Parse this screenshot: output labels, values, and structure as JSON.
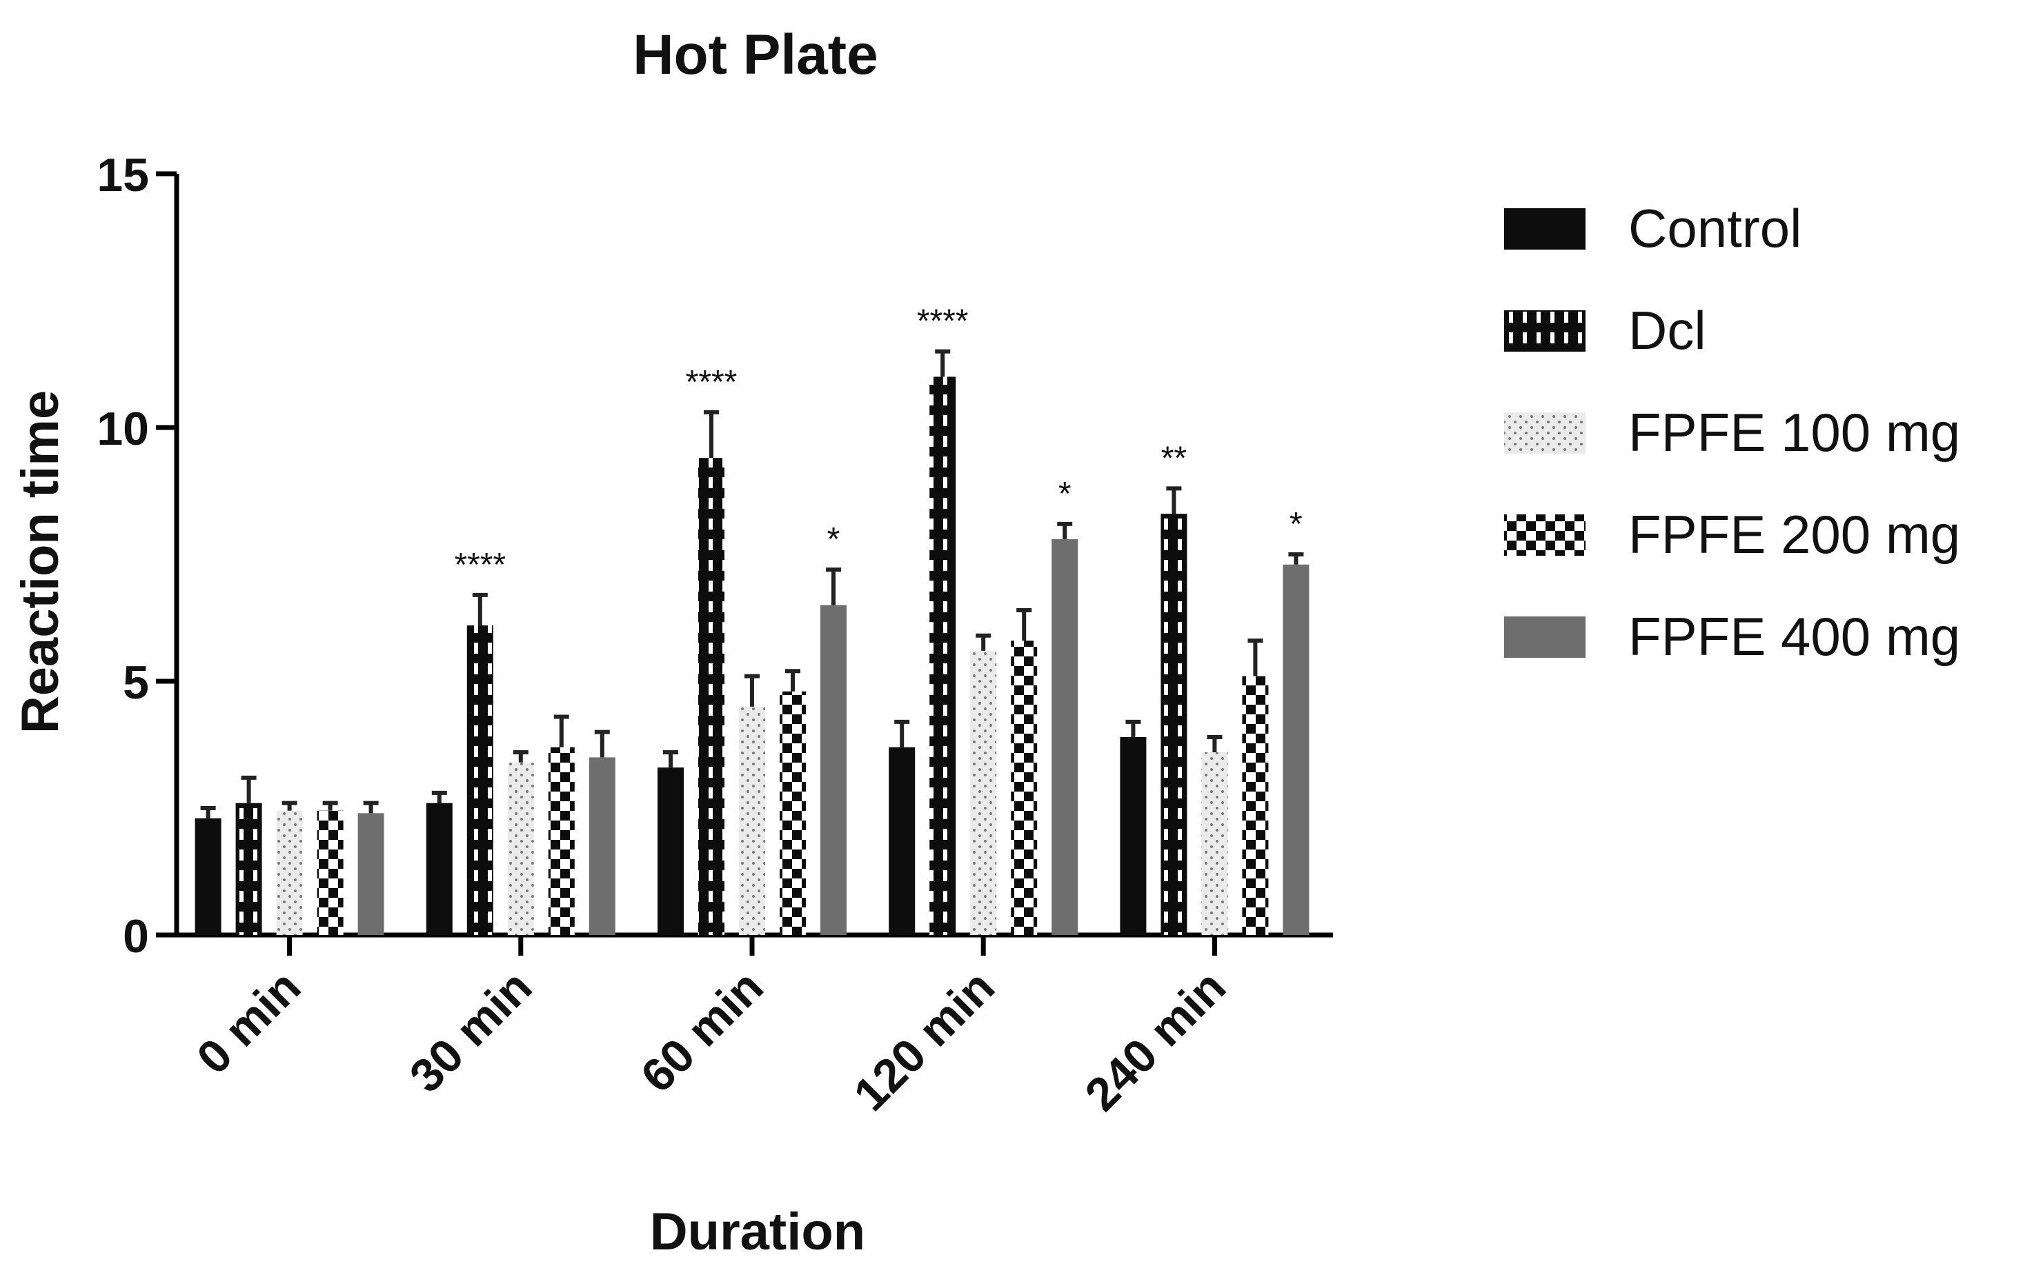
{
  "chart_data": {
    "type": "bar",
    "title": "Hot Plate",
    "xlabel": "Duration",
    "ylabel": "Reaction time",
    "ylim": [
      0,
      15
    ],
    "yticks": [
      0,
      5,
      10,
      15
    ],
    "grid": false,
    "legend_position": "right",
    "categories": [
      "0 min",
      "30 min",
      "60 min",
      "120 min",
      "240 min"
    ],
    "series": [
      {
        "name": "Control",
        "pattern": "solid-black",
        "color": "#0d0d0d",
        "values": [
          2.3,
          2.6,
          3.3,
          3.7,
          3.9
        ],
        "errors": [
          0.2,
          0.2,
          0.3,
          0.5,
          0.3
        ],
        "significance": [
          "",
          "",
          "",
          "",
          ""
        ]
      },
      {
        "name": "Dcl",
        "pattern": "black-with-white-dashes",
        "color": "#0d0d0d",
        "values": [
          2.6,
          6.1,
          9.4,
          11.0,
          8.3
        ],
        "errors": [
          0.5,
          0.6,
          0.9,
          0.5,
          0.5
        ],
        "significance": [
          "",
          "****",
          "****",
          "****",
          "**"
        ]
      },
      {
        "name": "FPFE 100 mg",
        "pattern": "light-gray-dots",
        "color": "#e6e6e6",
        "values": [
          2.45,
          3.4,
          4.5,
          5.6,
          3.6
        ],
        "errors": [
          0.15,
          0.2,
          0.6,
          0.3,
          0.3
        ],
        "significance": [
          "",
          "",
          "",
          "",
          ""
        ]
      },
      {
        "name": "FPFE 200 mg",
        "pattern": "checkerboard",
        "color": "#0d0d0d",
        "values": [
          2.45,
          3.7,
          4.8,
          5.8,
          5.1
        ],
        "errors": [
          0.15,
          0.6,
          0.4,
          0.6,
          0.7
        ],
        "significance": [
          "",
          "",
          "",
          "",
          ""
        ]
      },
      {
        "name": "FPFE 400 mg",
        "pattern": "solid-gray",
        "color": "#6e6e6e",
        "values": [
          2.4,
          3.5,
          6.5,
          7.8,
          7.3
        ],
        "errors": [
          0.2,
          0.5,
          0.7,
          0.3,
          0.2
        ],
        "significance": [
          "",
          "",
          "*",
          "*",
          "*"
        ]
      }
    ]
  }
}
